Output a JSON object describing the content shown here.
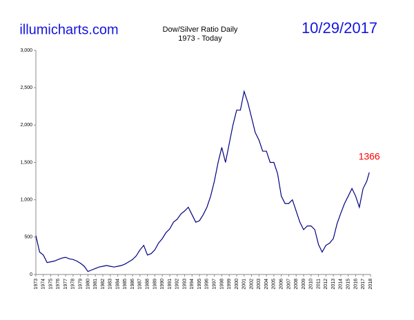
{
  "chart_data": {
    "type": "line",
    "brand": "illumicharts.com",
    "title": "Dow/Silver Ratio Daily",
    "subtitle": "1973 - Today",
    "date": "10/29/2017",
    "x": [
      1973.0,
      1973.5,
      1974.0,
      1974.5,
      1975.0,
      1975.5,
      1976.0,
      1976.5,
      1977.0,
      1977.5,
      1978.0,
      1978.5,
      1979.0,
      1979.5,
      1980.0,
      1980.5,
      1981.0,
      1981.5,
      1982.0,
      1982.5,
      1983.0,
      1983.5,
      1984.0,
      1984.5,
      1985.0,
      1985.5,
      1986.0,
      1986.5,
      1987.0,
      1987.5,
      1988.0,
      1988.5,
      1989.0,
      1989.5,
      1990.0,
      1990.5,
      1991.0,
      1991.5,
      1992.0,
      1992.5,
      1993.0,
      1993.5,
      1994.0,
      1994.5,
      1995.0,
      1995.5,
      1996.0,
      1996.5,
      1997.0,
      1997.5,
      1998.0,
      1998.5,
      1999.0,
      1999.5,
      2000.0,
      2000.5,
      2001.0,
      2001.5,
      2002.0,
      2002.5,
      2003.0,
      2003.5,
      2004.0,
      2004.5,
      2005.0,
      2005.5,
      2006.0,
      2006.5,
      2007.0,
      2007.5,
      2008.0,
      2008.5,
      2009.0,
      2009.5,
      2010.0,
      2010.5,
      2011.0,
      2011.5,
      2012.0,
      2012.5,
      2013.0,
      2013.5,
      2014.0,
      2014.5,
      2015.0,
      2015.5,
      2016.0,
      2016.5,
      2017.0,
      2017.5,
      2017.83
    ],
    "series": [
      {
        "name": "Dow/Silver Ratio",
        "color": "#000080",
        "values": [
          520,
          300,
          260,
          160,
          170,
          180,
          200,
          220,
          230,
          210,
          200,
          180,
          150,
          110,
          40,
          60,
          80,
          100,
          110,
          120,
          110,
          100,
          110,
          120,
          140,
          170,
          200,
          250,
          330,
          390,
          260,
          280,
          330,
          420,
          480,
          560,
          610,
          700,
          740,
          810,
          850,
          900,
          800,
          700,
          720,
          800,
          900,
          1050,
          1250,
          1500,
          1700,
          1500,
          1750,
          2000,
          2200,
          2200,
          2450,
          2300,
          2100,
          1900,
          1800,
          1650,
          1650,
          1500,
          1500,
          1350,
          1050,
          950,
          950,
          1000,
          850,
          700,
          600,
          650,
          650,
          600,
          400,
          300,
          390,
          420,
          480,
          680,
          820,
          950,
          1050,
          1150,
          1050,
          900,
          1150,
          1250,
          1366
        ]
      }
    ],
    "xlim": [
      1973,
      2018
    ],
    "xticks": [
      1973,
      1974,
      1975,
      1976,
      1977,
      1978,
      1979,
      1980,
      1981,
      1982,
      1983,
      1984,
      1985,
      1986,
      1987,
      1988,
      1989,
      1990,
      1991,
      1992,
      1993,
      1994,
      1995,
      1996,
      1997,
      1998,
      1999,
      2000,
      2001,
      2002,
      2003,
      2004,
      2005,
      2006,
      2007,
      2008,
      2009,
      2010,
      2011,
      2012,
      2013,
      2014,
      2015,
      2016,
      2017,
      2018
    ],
    "ylim": [
      0,
      3000
    ],
    "yticks": [
      0,
      500,
      {
        "value": 1000,
        "label": "1,000"
      },
      {
        "value": 1500,
        "label": "1,500"
      },
      {
        "value": 2000,
        "label": "2,000"
      },
      {
        "value": 2500,
        "label": "2,500"
      },
      {
        "value": 3000,
        "label": "3,000"
      }
    ],
    "label_color": "#ff0000",
    "grid": false
  }
}
